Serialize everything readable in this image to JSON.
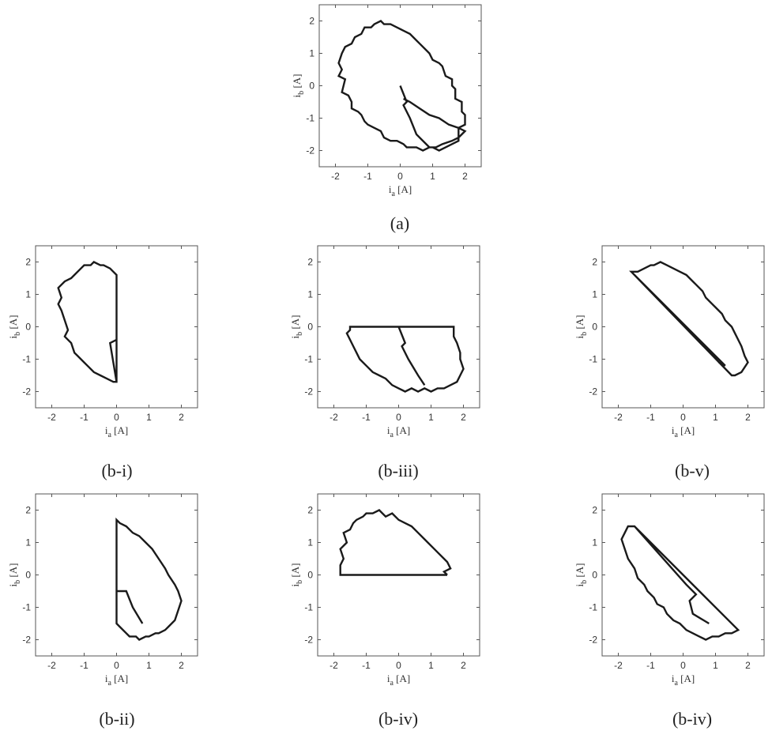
{
  "figure": {
    "captions": [
      "(a)",
      "(b-i)",
      "(b-iii)",
      "(b-v)",
      "(b-ii)",
      "(b-iv)",
      "(b-iv)"
    ]
  },
  "chart_data": [
    {
      "type": "line",
      "panel": "(a)",
      "xlabel": "i_a [A]",
      "ylabel": "i_b [A]",
      "xlim": [
        -2.5,
        2.5
      ],
      "ylim": [
        -2.5,
        2.5
      ],
      "xticks": [
        -2,
        -1,
        0,
        1,
        2
      ],
      "yticks": [
        -2,
        -1,
        0,
        1,
        2
      ],
      "grid": false,
      "series": [
        {
          "x": [
            0,
            0.2,
            0.2,
            0.1,
            0.3,
            0.5,
            0.6,
            0.9,
            1.0,
            1.2,
            1.4,
            1.6,
            1.8,
            1.8,
            2.0,
            2.0,
            1.9,
            1.9,
            1.7,
            1.7,
            1.6,
            1.6,
            1.4,
            1.3,
            1.2,
            1.0,
            0.9,
            0.8,
            0.6,
            0.5,
            0.3,
            0.1,
            -0.1,
            -0.3,
            -0.5,
            -0.6,
            -0.8,
            -0.9,
            -1.1,
            -1.2,
            -1.4,
            -1.5,
            -1.7,
            -1.8,
            -1.9,
            -1.8,
            -1.9,
            -1.7,
            -1.8,
            -1.6,
            -1.5,
            -1.5,
            -1.3,
            -1.2,
            -1.1,
            -1.0,
            -0.8,
            -0.6,
            -0.5,
            -0.3,
            -0.1,
            0.1,
            0.2,
            0.4,
            0.5,
            0.7,
            0.9,
            1.1,
            1.3,
            1.6,
            1.8,
            2.0,
            1.8,
            1.5,
            1.2,
            0.9,
            0.6,
            0.3,
            0.1
          ],
          "y": [
            0,
            -0.5,
            -0.5,
            -0.6,
            -1.0,
            -1.5,
            -1.6,
            -1.9,
            -1.9,
            -2.0,
            -1.9,
            -1.8,
            -1.7,
            -1.3,
            -1.2,
            -0.9,
            -0.8,
            -0.5,
            -0.4,
            -0.1,
            0.0,
            0.2,
            0.3,
            0.6,
            0.7,
            0.8,
            1.0,
            1.1,
            1.3,
            1.4,
            1.6,
            1.7,
            1.8,
            1.9,
            1.9,
            2.0,
            1.9,
            1.8,
            1.8,
            1.6,
            1.5,
            1.3,
            1.2,
            1.0,
            0.7,
            0.5,
            0.3,
            0.2,
            -0.2,
            -0.3,
            -0.5,
            -0.7,
            -0.8,
            -0.9,
            -1.1,
            -1.2,
            -1.3,
            -1.4,
            -1.6,
            -1.7,
            -1.7,
            -1.8,
            -1.9,
            -1.9,
            -1.9,
            -2.0,
            -1.9,
            -1.9,
            -1.8,
            -1.7,
            -1.6,
            -1.4,
            -1.3,
            -1.2,
            -1.0,
            -0.9,
            -0.7,
            -0.5,
            -0.4
          ]
        }
      ]
    },
    {
      "type": "line",
      "panel": "(b-i)",
      "xlabel": "i_a [A]",
      "ylabel": "i_b [A]",
      "xlim": [
        -2.5,
        2.5
      ],
      "ylim": [
        -2.5,
        2.5
      ],
      "xticks": [
        -2,
        -1,
        0,
        1,
        2
      ],
      "yticks": [
        -2,
        -1,
        0,
        1,
        2
      ],
      "grid": false,
      "series": [
        {
          "x": [
            0,
            0,
            -0.1,
            -0.2,
            -0.4,
            -0.5,
            -0.7,
            -0.8,
            -1.0,
            -1.1,
            -1.3,
            -1.4,
            -1.6,
            -1.8,
            -1.7,
            -1.8,
            -1.7,
            -1.6,
            -1.5,
            -1.6,
            -1.4,
            -1.3,
            -1.2,
            -1.0,
            -0.9,
            -0.7,
            -0.5,
            -0.3,
            -0.1,
            0,
            0,
            -0.2,
            0
          ],
          "y": [
            -1.7,
            1.6,
            1.7,
            1.8,
            1.9,
            1.9,
            2.0,
            1.9,
            1.9,
            1.8,
            1.6,
            1.5,
            1.4,
            1.2,
            0.9,
            0.7,
            0.5,
            0.2,
            -0.1,
            -0.3,
            -0.5,
            -0.8,
            -0.9,
            -1.1,
            -1.2,
            -1.4,
            -1.5,
            -1.6,
            -1.7,
            -1.7,
            -0.4,
            -0.5,
            -1.7
          ]
        }
      ]
    },
    {
      "type": "line",
      "panel": "(b-iii)",
      "xlabel": "i_a [A]",
      "ylabel": "i_b [A]",
      "xlim": [
        -2.5,
        2.5
      ],
      "ylim": [
        -2.5,
        2.5
      ],
      "xticks": [
        -2,
        -1,
        0,
        1,
        2
      ],
      "yticks": [
        -2,
        -1,
        0,
        1,
        2
      ],
      "grid": false,
      "series": [
        {
          "x": [
            -1.5,
            1.7,
            1.7,
            1.8,
            1.9,
            1.9,
            2.0,
            1.9,
            1.8,
            1.6,
            1.4,
            1.2,
            1.0,
            0.8,
            0.6,
            0.4,
            0.2,
            0.0,
            -0.2,
            -0.4,
            -0.6,
            -0.8,
            -1.0,
            -1.2,
            -1.3,
            -1.4,
            -1.5,
            -1.6,
            -1.5,
            -1.5,
            0.0,
            0.2,
            0.1,
            0.3,
            0.6,
            0.8
          ],
          "y": [
            0.0,
            0.0,
            -0.3,
            -0.5,
            -0.8,
            -1.0,
            -1.3,
            -1.5,
            -1.7,
            -1.8,
            -1.9,
            -1.9,
            -2.0,
            -1.9,
            -2.0,
            -1.9,
            -2.0,
            -1.9,
            -1.8,
            -1.6,
            -1.5,
            -1.4,
            -1.2,
            -1.0,
            -0.8,
            -0.6,
            -0.4,
            -0.2,
            -0.1,
            0.0,
            0.0,
            -0.5,
            -0.6,
            -1.0,
            -1.5,
            -1.8
          ]
        }
      ]
    },
    {
      "type": "line",
      "panel": "(b-v)",
      "xlabel": "i_a [A]",
      "ylabel": "i_b [A]",
      "xlim": [
        -2.5,
        2.5
      ],
      "ylim": [
        -2.5,
        2.5
      ],
      "xticks": [
        -2,
        -1,
        0,
        1,
        2
      ],
      "yticks": [
        -2,
        -1,
        0,
        1,
        2
      ],
      "grid": false,
      "series": [
        {
          "x": [
            -1.6,
            1.5,
            1.6,
            1.8,
            2.0,
            1.9,
            1.8,
            1.7,
            1.6,
            1.5,
            1.3,
            1.2,
            1.0,
            0.9,
            0.7,
            0.6,
            0.4,
            0.3,
            0.1,
            -0.1,
            -0.3,
            -0.5,
            -0.7,
            -0.9,
            -1.0,
            -1.2,
            -1.4,
            -1.6,
            1.2,
            1.3,
            1.1
          ],
          "y": [
            1.7,
            -1.5,
            -1.5,
            -1.4,
            -1.1,
            -0.9,
            -0.6,
            -0.4,
            -0.2,
            0.0,
            0.2,
            0.4,
            0.6,
            0.7,
            0.9,
            1.1,
            1.3,
            1.4,
            1.6,
            1.7,
            1.8,
            1.9,
            2.0,
            1.9,
            1.9,
            1.8,
            1.7,
            1.7,
            -1.1,
            -1.2,
            -1.1
          ]
        }
      ]
    },
    {
      "type": "line",
      "panel": "(b-ii)",
      "xlabel": "i_a [A]",
      "ylabel": "i_b [A]",
      "xlim": [
        -2.5,
        2.5
      ],
      "ylim": [
        -2.5,
        2.5
      ],
      "xticks": [
        -2,
        -1,
        0,
        1,
        2
      ],
      "yticks": [
        -2,
        -1,
        0,
        1,
        2
      ],
      "grid": false,
      "series": [
        {
          "x": [
            0,
            0,
            0.1,
            0.3,
            0.4,
            0.6,
            0.7,
            0.9,
            1.0,
            1.2,
            1.3,
            1.5,
            1.6,
            1.8,
            1.9,
            2.0,
            1.9,
            1.8,
            1.6,
            1.5,
            1.3,
            1.1,
            0.9,
            0.7,
            0.5,
            0.3,
            0.1,
            0,
            0,
            0.3,
            0.5,
            0.8
          ],
          "y": [
            1.7,
            -1.5,
            -1.6,
            -1.8,
            -1.9,
            -1.9,
            -2.0,
            -1.9,
            -1.9,
            -1.8,
            -1.8,
            -1.7,
            -1.6,
            -1.4,
            -1.1,
            -0.8,
            -0.5,
            -0.3,
            0.0,
            0.2,
            0.5,
            0.8,
            1.0,
            1.2,
            1.3,
            1.5,
            1.6,
            1.7,
            -0.5,
            -0.5,
            -1.0,
            -1.5
          ]
        }
      ]
    },
    {
      "type": "line",
      "panel": "(b-iv)",
      "xlabel": "i_a [A]",
      "ylabel": "i_b [A]",
      "xlim": [
        -2.5,
        2.5
      ],
      "ylim": [
        -2.5,
        2.5
      ],
      "xticks": [
        -2,
        -1,
        0,
        1,
        2
      ],
      "yticks": [
        -2,
        -1,
        0,
        1,
        2
      ],
      "grid": false,
      "series": [
        {
          "x": [
            1.5,
            -1.8,
            -1.8,
            -1.7,
            -1.8,
            -1.6,
            -1.7,
            -1.5,
            -1.4,
            -1.3,
            -1.1,
            -1.0,
            -0.8,
            -0.6,
            -0.4,
            -0.2,
            0.0,
            0.2,
            0.4,
            0.6,
            0.8,
            0.9,
            1.1,
            1.2,
            1.4,
            1.5,
            1.6,
            1.4,
            1.5
          ],
          "y": [
            0.0,
            0.0,
            0.3,
            0.5,
            0.8,
            1.0,
            1.3,
            1.4,
            1.6,
            1.7,
            1.8,
            1.9,
            1.9,
            2.0,
            1.8,
            1.9,
            1.7,
            1.6,
            1.5,
            1.3,
            1.1,
            1.0,
            0.8,
            0.7,
            0.5,
            0.4,
            0.2,
            0.1,
            0.0
          ]
        }
      ]
    },
    {
      "type": "line",
      "panel": "(b-iv)",
      "xlabel": "i_a [A]",
      "ylabel": "i_b [A]",
      "xlim": [
        -2.5,
        2.5
      ],
      "ylim": [
        -2.5,
        2.5
      ],
      "xticks": [
        -2,
        -1,
        0,
        1,
        2
      ],
      "yticks": [
        -2,
        -1,
        0,
        1,
        2
      ],
      "grid": false,
      "series": [
        {
          "x": [
            -1.5,
            1.7,
            1.5,
            1.3,
            1.1,
            0.9,
            0.7,
            0.5,
            0.3,
            0.1,
            -0.1,
            -0.3,
            -0.5,
            -0.6,
            -0.8,
            -0.9,
            -1.1,
            -1.2,
            -1.4,
            -1.5,
            -1.7,
            -1.8,
            -1.9,
            -1.8,
            -1.7,
            -1.5,
            0.1,
            0.4,
            0.2,
            0.3,
            0.8
          ],
          "y": [
            1.5,
            -1.7,
            -1.8,
            -1.8,
            -1.9,
            -1.9,
            -2.0,
            -1.9,
            -1.8,
            -1.7,
            -1.5,
            -1.4,
            -1.2,
            -1.0,
            -0.9,
            -0.7,
            -0.5,
            -0.3,
            -0.1,
            0.2,
            0.5,
            0.8,
            1.1,
            1.3,
            1.5,
            1.5,
            -0.3,
            -0.6,
            -0.8,
            -1.2,
            -1.5
          ]
        }
      ]
    }
  ]
}
